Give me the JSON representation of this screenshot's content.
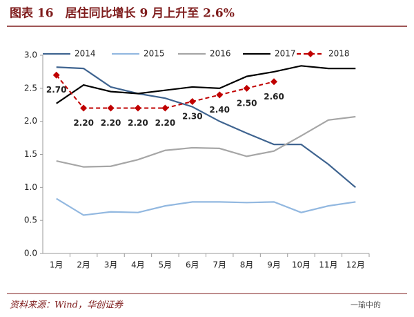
{
  "chart_data": {
    "type": "line",
    "title": "图表 16　居住同比增长 9 月上升至 2.6%",
    "source": "资料来源：Wind，华创证券",
    "watermark": "一瑜中的",
    "categories": [
      "1月",
      "2月",
      "3月",
      "4月",
      "5月",
      "6月",
      "7月",
      "8月",
      "9月",
      "10月",
      "11月",
      "12月"
    ],
    "ylim": [
      0,
      3
    ],
    "yticks": [
      {
        "value": 0,
        "label": "0.0"
      },
      0.5,
      {
        "value": 1,
        "label": "1.0"
      },
      1.5,
      {
        "value": 2,
        "label": "2.0"
      },
      2.5,
      {
        "value": 3,
        "label": "3.0"
      }
    ],
    "series": [
      {
        "name": "2014",
        "color": "#3f6490",
        "values": [
          2.82,
          2.8,
          2.52,
          2.42,
          2.35,
          2.22,
          2.0,
          1.82,
          1.65,
          1.65,
          1.35,
          1.0
        ]
      },
      {
        "name": "2015",
        "color": "#92b8e0",
        "values": [
          0.83,
          0.58,
          0.63,
          0.62,
          0.72,
          0.78,
          0.78,
          0.77,
          0.78,
          0.62,
          0.72,
          0.78
        ]
      },
      {
        "name": "2016",
        "color": "#a6a6a6",
        "values": [
          1.4,
          1.31,
          1.32,
          1.42,
          1.56,
          1.6,
          1.59,
          1.47,
          1.55,
          1.78,
          2.02,
          2.07
        ]
      },
      {
        "name": "2017",
        "color": "#000000",
        "values": [
          2.27,
          2.55,
          2.45,
          2.42,
          2.47,
          2.52,
          2.5,
          2.68,
          2.75,
          2.84,
          2.8,
          2.8
        ]
      },
      {
        "name": "2018",
        "color": "#c00000",
        "dashed": true,
        "marker": "diamond",
        "values": [
          2.7,
          2.2,
          2.2,
          2.2,
          2.2,
          2.3,
          2.4,
          2.5,
          2.6,
          null,
          null,
          null
        ],
        "value_labels": [
          "2.70",
          "2.20",
          "2.20",
          "2.20",
          "2.20",
          "2.30",
          "2.40",
          "2.50",
          "2.60",
          null,
          null,
          null
        ]
      }
    ]
  }
}
